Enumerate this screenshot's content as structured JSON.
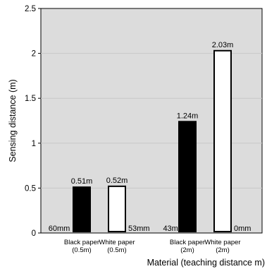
{
  "chart_data": {
    "type": "bar",
    "title": "",
    "ylabel": "Sensing distance (m)",
    "xlabel": "Material (teaching distance m)",
    "ylim": [
      0,
      2.5
    ],
    "yticks": [
      "0",
      "0.5",
      "1",
      "1.5",
      "2",
      "2.5"
    ],
    "bars": [
      {
        "category_line1": "Black paper",
        "category_line2": "(0.5m)",
        "value": 0.51,
        "top_label": "0.51m",
        "bottom_label": "60mm",
        "fill": "#000000"
      },
      {
        "category_line1": "White paper",
        "category_line2": "(0.5m)",
        "value": 0.52,
        "top_label": "0.52m",
        "bottom_label": "53mm",
        "fill": "#ffffff"
      },
      {
        "category_line1": "Black paper",
        "category_line2": "(2m)",
        "value": 1.24,
        "top_label": "1.24m",
        "bottom_label": "43mm",
        "fill": "#000000"
      },
      {
        "category_line1": "White paper",
        "category_line2": "(2m)",
        "value": 2.03,
        "top_label": "2.03m",
        "bottom_label": "0mm",
        "fill": "#ffffff"
      }
    ],
    "grid": {
      "horizontal": true,
      "color": "#c8c8c8"
    },
    "plot_background": "#dcdcdc"
  }
}
